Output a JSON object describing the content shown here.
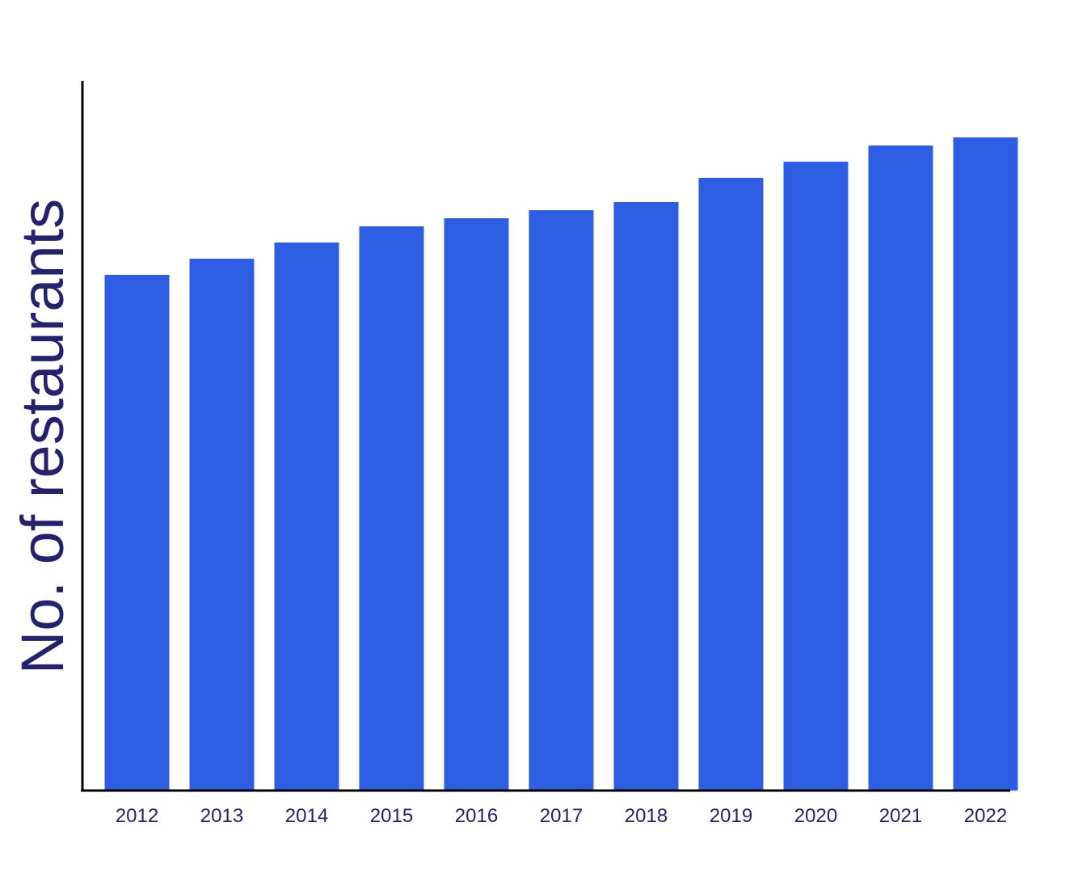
{
  "chart_data": {
    "type": "bar",
    "title": "",
    "xlabel": "",
    "ylabel": "No. of restaurants",
    "categories": [
      "2012",
      "2013",
      "2014",
      "2015",
      "2016",
      "2017",
      "2018",
      "2019",
      "2020",
      "2021",
      "2022"
    ],
    "values": [
      63.8,
      65.8,
      67.8,
      69.8,
      70.8,
      71.8,
      72.8,
      75.8,
      77.8,
      79.8,
      80.8
    ],
    "ylim": [
      0,
      87.8
    ],
    "grid": false,
    "legend": "none",
    "y_ticks_shown": false
  },
  "colors": {
    "bar": "#2d5de3",
    "text": "#22226e",
    "axis": "#000000",
    "background": "#ffffff"
  }
}
